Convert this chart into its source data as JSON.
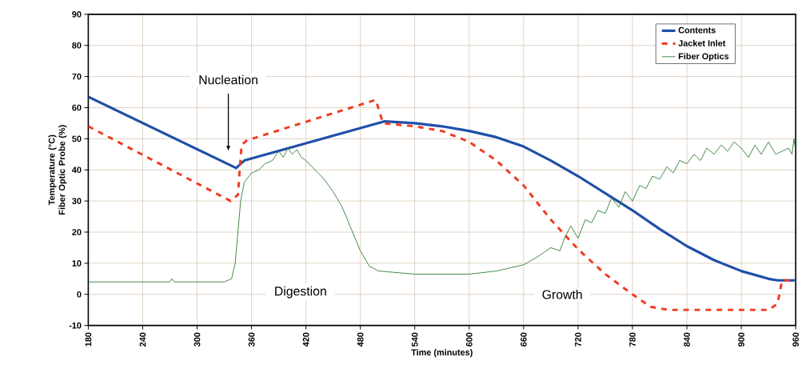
{
  "chart_data": {
    "type": "line",
    "xlabel": "Time (minutes)",
    "ylabel": "Temperature (°C) Fiber Optic Probe (%)",
    "xlim": [
      180,
      960
    ],
    "xticks": [
      180,
      240,
      300,
      360,
      420,
      480,
      540,
      600,
      660,
      720,
      780,
      840,
      900,
      960
    ],
    "ylim": [
      -10,
      90
    ],
    "yticks": [
      -10,
      0,
      10,
      20,
      30,
      40,
      50,
      60,
      70,
      80,
      90
    ],
    "grid": true,
    "legend": "top right",
    "marker": "none",
    "series": [
      {
        "name": "Contents",
        "color": "#1f4fa8",
        "line_style": "solid",
        "x": [
          180,
          343,
          352,
          507,
          540,
          570,
          600,
          630,
          660,
          690,
          720,
          750,
          780,
          810,
          840,
          870,
          900,
          930,
          940,
          960
        ],
        "values": [
          63.5,
          40.6,
          43,
          55.6,
          55,
          54,
          52.5,
          50.5,
          47.5,
          43,
          38,
          32.5,
          27,
          21,
          15.5,
          11,
          7.5,
          5,
          4.5,
          4.5
        ]
      },
      {
        "name": "Jacket Inlet",
        "color": "#f03c22",
        "line_style": "dashed",
        "x": [
          180,
          337,
          345,
          349,
          355,
          497,
          505,
          540,
          570,
          600,
          630,
          660,
          690,
          720,
          750,
          780,
          800,
          820,
          930,
          940,
          945,
          960
        ],
        "values": [
          54,
          30,
          32,
          48,
          49.5,
          62.5,
          55,
          54,
          52.5,
          49,
          43,
          35,
          24,
          14.5,
          6.5,
          0,
          -4,
          -5,
          -5,
          -3,
          4.5,
          4.5
        ]
      },
      {
        "name": "Fiber Optics",
        "color": "#2e7d32",
        "line_style": "solid",
        "x": [
          180,
          270,
          272,
          275,
          330,
          338,
          342,
          345,
          348,
          352,
          360,
          368,
          375,
          383,
          390,
          395,
          400,
          405,
          410,
          415,
          420,
          430,
          440,
          450,
          460,
          470,
          480,
          490,
          500,
          540,
          600,
          630,
          660,
          675,
          690,
          700,
          705,
          712,
          720,
          728,
          735,
          742,
          750,
          757,
          765,
          772,
          780,
          788,
          795,
          802,
          810,
          818,
          825,
          832,
          840,
          848,
          855,
          862,
          870,
          878,
          885,
          892,
          900,
          908,
          915,
          922,
          930,
          938,
          945,
          952,
          956,
          958,
          960
        ],
        "values": [
          4,
          4,
          5,
          4,
          4,
          5,
          10,
          20,
          30,
          36,
          39,
          40,
          42,
          43,
          46,
          44,
          47,
          45,
          46.5,
          44,
          43,
          40,
          37,
          33,
          28,
          21,
          14,
          9,
          7.5,
          6.5,
          6.5,
          7.5,
          9.5,
          12,
          15,
          14,
          18,
          22,
          18,
          24,
          23,
          27,
          26,
          31,
          28,
          33,
          30,
          35,
          34,
          38,
          37,
          41,
          39,
          43,
          42,
          45,
          43,
          47,
          45,
          48,
          46,
          49,
          47,
          44,
          48,
          45,
          49,
          45,
          46,
          47,
          45,
          50,
          46
        ]
      }
    ],
    "annotations": [
      "Nucleation",
      "Digestion",
      "Growth"
    ]
  }
}
